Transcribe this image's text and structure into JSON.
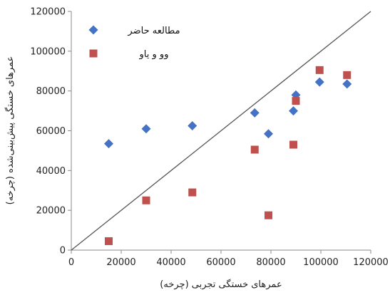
{
  "chart_data": {
    "type": "scatter",
    "xlabel": "عمرهای خستگی تجربی (چرخه)",
    "ylabel": "عمرهای خستگی پیش‌بینی‌شده (چرخه)",
    "xlim": [
      0,
      120000
    ],
    "ylim": [
      0,
      120000
    ],
    "x_ticks": [
      "0",
      "20000",
      "40000",
      "60000",
      "80000",
      "100000",
      "120000"
    ],
    "y_ticks": [
      "0",
      "20000",
      "40000",
      "60000",
      "80000",
      "100000",
      "120000"
    ],
    "grid": false,
    "legend_position": "top-left",
    "reference_line": {
      "from": [
        0,
        0
      ],
      "to": [
        120000,
        120000
      ],
      "color": "#555555"
    },
    "series": [
      {
        "name": "مطالعه حاضر",
        "marker": "diamond",
        "color": "#4472c4",
        "points": [
          {
            "x": 15000,
            "y": 53500
          },
          {
            "x": 30000,
            "y": 61000
          },
          {
            "x": 48500,
            "y": 62500
          },
          {
            "x": 73500,
            "y": 69000
          },
          {
            "x": 79000,
            "y": 58500
          },
          {
            "x": 89000,
            "y": 70000
          },
          {
            "x": 90000,
            "y": 78000
          },
          {
            "x": 99500,
            "y": 84500
          },
          {
            "x": 110500,
            "y": 83500
          }
        ]
      },
      {
        "name": "وو و یاو",
        "marker": "square",
        "color": "#c0504d",
        "points": [
          {
            "x": 15000,
            "y": 4500
          },
          {
            "x": 30000,
            "y": 25000
          },
          {
            "x": 48500,
            "y": 29000
          },
          {
            "x": 73500,
            "y": 50500
          },
          {
            "x": 79000,
            "y": 17500
          },
          {
            "x": 89000,
            "y": 53000
          },
          {
            "x": 90000,
            "y": 75000
          },
          {
            "x": 99500,
            "y": 90500
          },
          {
            "x": 110500,
            "y": 88000
          }
        ]
      }
    ]
  }
}
